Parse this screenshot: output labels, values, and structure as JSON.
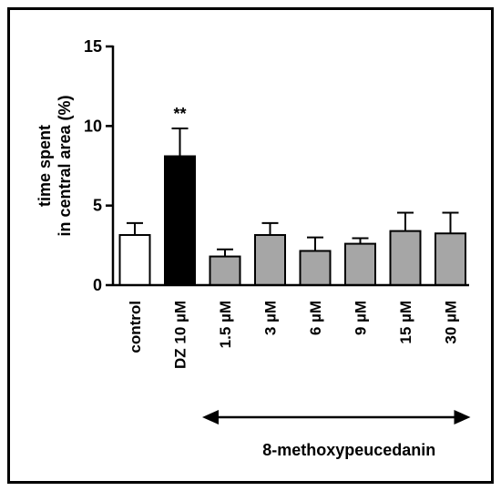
{
  "chart_data": {
    "type": "bar",
    "ylabel_lines": [
      "time spent",
      "in central area (%)"
    ],
    "ylim": [
      0,
      15
    ],
    "yticks": [
      "0",
      "5",
      "10",
      "15"
    ],
    "categories": [
      "control",
      "DZ 10 µM",
      "1.5 µM",
      "3 µM",
      "6 µM",
      "9 µM",
      "15 µM",
      "30 µM"
    ],
    "values": [
      3.15,
      8.1,
      1.8,
      3.15,
      2.15,
      2.6,
      3.4,
      3.25
    ],
    "errors": [
      0.75,
      1.75,
      0.45,
      0.75,
      0.85,
      0.35,
      1.15,
      1.3
    ],
    "bar_colors": [
      "#ffffff",
      "#000000",
      "#a6a6a6",
      "#a6a6a6",
      "#a6a6a6",
      "#a6a6a6",
      "#a6a6a6",
      "#a6a6a6"
    ],
    "significance": {
      "category_index": 1,
      "label": "**"
    },
    "group_label": "8-methoxypeucedanin",
    "group_range": [
      2,
      7
    ],
    "grid": false,
    "legend": "none"
  }
}
